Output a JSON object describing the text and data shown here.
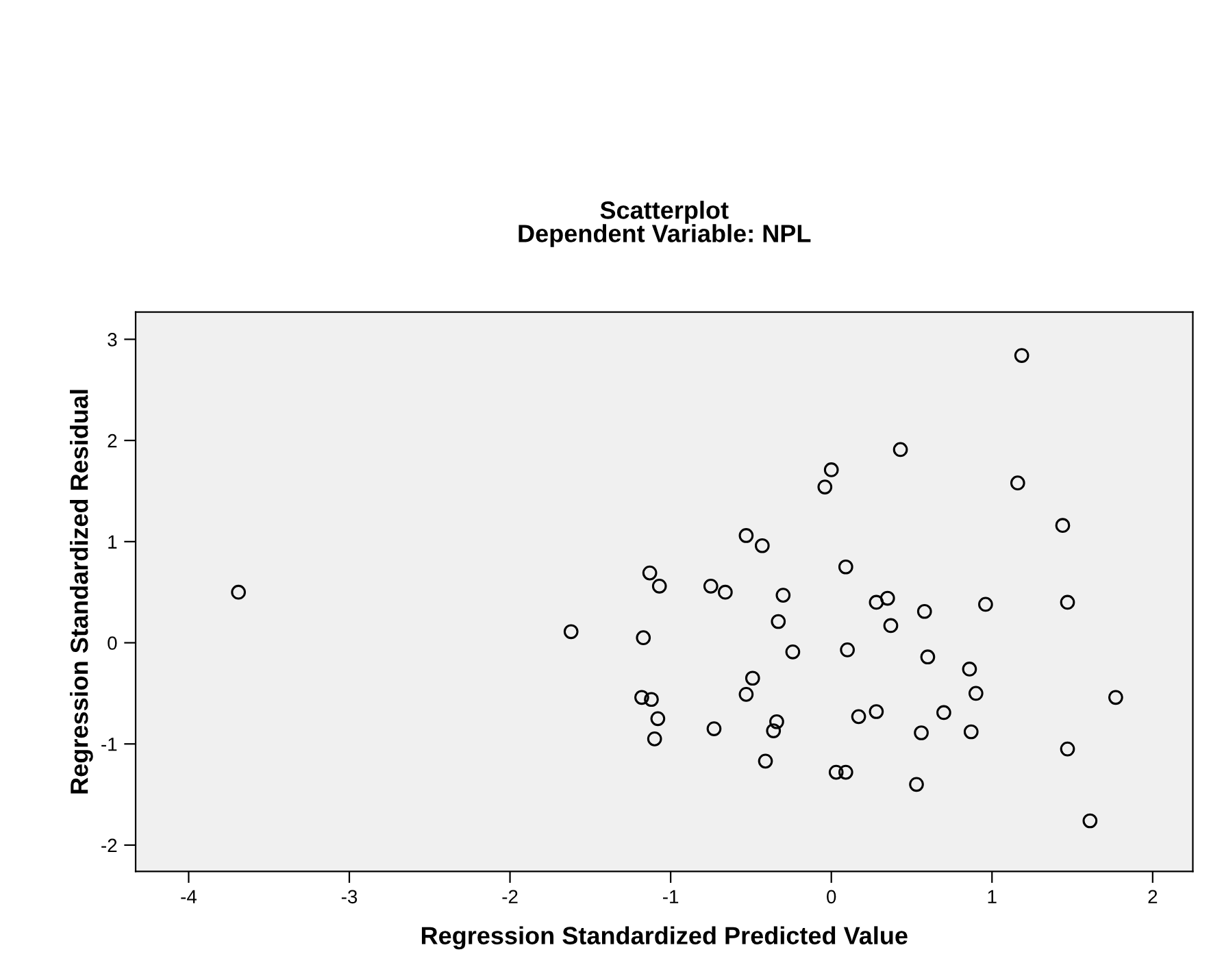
{
  "chart_data": {
    "type": "scatter",
    "title": "Scatterplot",
    "subtitle": "Dependent Variable: NPL",
    "xlabel": "Regression Standardized Predicted Value",
    "ylabel": "Regression Standardized Residual",
    "x": [
      -3.69,
      -1.62,
      -1.13,
      -1.07,
      -1.17,
      -1.18,
      -1.12,
      -1.08,
      -1.1,
      1.185,
      0.43,
      0.0,
      -0.04,
      1.16,
      1.44,
      -0.53,
      -0.43,
      0.09,
      -0.75,
      -0.66,
      -0.3,
      0.28,
      0.35,
      0.58,
      0.96,
      1.47,
      -0.33,
      0.37,
      -0.24,
      0.1,
      0.6,
      0.86,
      -0.49,
      -0.53,
      0.9,
      1.77,
      0.17,
      0.28,
      0.7,
      -0.73,
      -0.34,
      -0.36,
      0.56,
      0.87,
      1.47,
      -0.41,
      0.03,
      0.09,
      0.53,
      1.61
    ],
    "series": [
      {
        "color": "#000000",
        "values": [
          0.5,
          0.11,
          0.69,
          0.56,
          0.05,
          -0.54,
          -0.56,
          -0.75,
          -0.95,
          2.84,
          1.91,
          1.71,
          1.54,
          1.58,
          1.16,
          1.06,
          0.96,
          0.75,
          0.56,
          0.5,
          0.47,
          0.4,
          0.44,
          0.31,
          0.38,
          0.4,
          0.21,
          0.17,
          -0.09,
          -0.07,
          -0.14,
          -0.26,
          -0.35,
          -0.51,
          -0.5,
          -0.54,
          -0.73,
          -0.68,
          -0.69,
          -0.85,
          -0.78,
          -0.87,
          -0.89,
          -0.88,
          -1.05,
          -1.17,
          -1.28,
          -1.28,
          -1.4,
          -1.76
        ]
      }
    ],
    "xlim": [
      -4.33,
      2.25
    ],
    "ylim": [
      -2.26,
      3.27
    ],
    "xticks": [
      -4,
      -3,
      -2,
      -1,
      0,
      1,
      2
    ],
    "yticks": [
      -2,
      -1,
      0,
      1,
      2,
      3
    ],
    "marker": "circle",
    "grid": false,
    "legend": false
  }
}
